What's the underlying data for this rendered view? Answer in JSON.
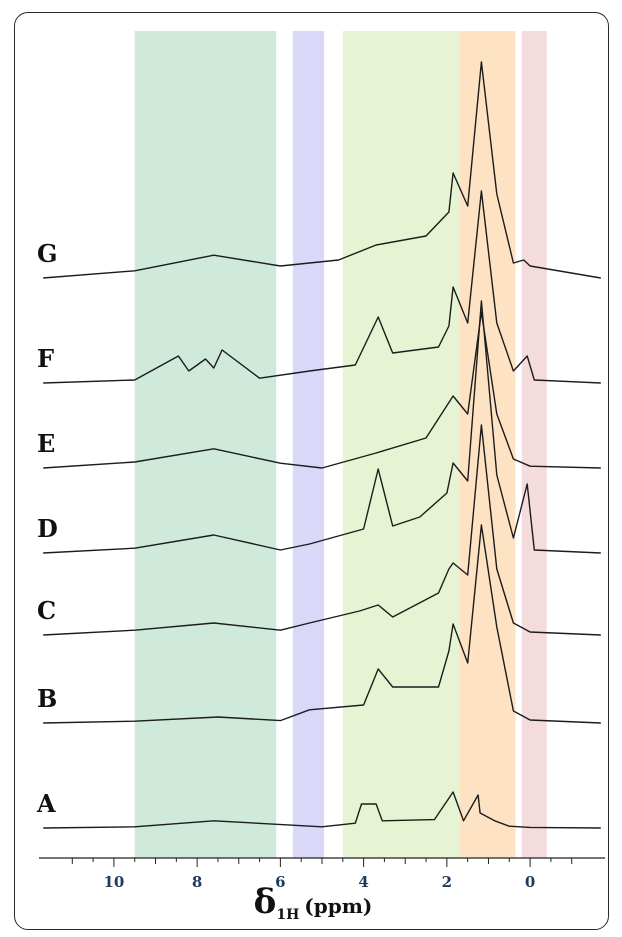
{
  "chart_data": {
    "type": "line",
    "title": "",
    "xlabel": {
      "symbol": "δ",
      "subscript": "1H",
      "unit": "(ppm)"
    },
    "ylabel": "",
    "xlim": [
      11.8,
      -1.8
    ],
    "reversed_x_axis": true,
    "x_ticks": [
      10,
      8,
      6,
      4,
      2,
      0
    ],
    "grid": false,
    "legend": "none",
    "highlight_regions": [
      {
        "from": 9.5,
        "to": 6.1,
        "color": "#cfe9da"
      },
      {
        "from": 5.7,
        "to": 4.95,
        "color": "#d9d8f8"
      },
      {
        "from": 4.5,
        "to": 1.7,
        "color": "#e7f4d3"
      },
      {
        "from": 1.7,
        "to": 0.35,
        "color": "#fde3c3"
      },
      {
        "from": 0.2,
        "to": -0.4,
        "color": "#f4dcdc"
      }
    ],
    "series": [
      {
        "name": "A",
        "points": [
          [
            11.7,
            0
          ],
          [
            9.5,
            2
          ],
          [
            7.6,
            12
          ],
          [
            5.0,
            2
          ],
          [
            4.2,
            8
          ],
          [
            4.05,
            40
          ],
          [
            3.7,
            40
          ],
          [
            3.55,
            12
          ],
          [
            2.3,
            14
          ],
          [
            1.85,
            60
          ],
          [
            1.6,
            12
          ],
          [
            1.25,
            55
          ],
          [
            1.2,
            25
          ],
          [
            0.85,
            12
          ],
          [
            0.5,
            3
          ],
          [
            0,
            1
          ],
          [
            -1.7,
            0
          ]
        ]
      },
      {
        "name": "B",
        "points": [
          [
            11.7,
            0
          ],
          [
            9.5,
            3
          ],
          [
            7.5,
            10
          ],
          [
            6.0,
            4
          ],
          [
            5.3,
            22
          ],
          [
            4.0,
            30
          ],
          [
            3.65,
            90
          ],
          [
            3.3,
            60
          ],
          [
            2.2,
            60
          ],
          [
            1.95,
            120
          ],
          [
            1.85,
            165
          ],
          [
            1.5,
            100
          ],
          [
            1.17,
            330
          ],
          [
            0.8,
            160
          ],
          [
            0.4,
            20
          ],
          [
            0,
            5
          ],
          [
            -1.7,
            0
          ]
        ]
      },
      {
        "name": "C",
        "points": [
          [
            11.7,
            0
          ],
          [
            9.5,
            8
          ],
          [
            7.6,
            20
          ],
          [
            6.0,
            8
          ],
          [
            5.3,
            20
          ],
          [
            4.1,
            40
          ],
          [
            3.65,
            50
          ],
          [
            3.3,
            30
          ],
          [
            2.2,
            70
          ],
          [
            1.95,
            110
          ],
          [
            1.85,
            120
          ],
          [
            1.5,
            100
          ],
          [
            1.17,
            350
          ],
          [
            0.8,
            110
          ],
          [
            0.4,
            20
          ],
          [
            0,
            5
          ],
          [
            -1.7,
            0
          ]
        ]
      },
      {
        "name": "D",
        "points": [
          [
            11.7,
            0
          ],
          [
            9.5,
            8
          ],
          [
            7.6,
            30
          ],
          [
            6.0,
            5
          ],
          [
            5.3,
            15
          ],
          [
            4.0,
            40
          ],
          [
            3.65,
            140
          ],
          [
            3.3,
            45
          ],
          [
            2.65,
            60
          ],
          [
            2.0,
            100
          ],
          [
            1.85,
            150
          ],
          [
            1.5,
            120
          ],
          [
            1.17,
            420
          ],
          [
            0.8,
            130
          ],
          [
            0.4,
            25
          ],
          [
            0.07,
            115
          ],
          [
            -0.1,
            5
          ],
          [
            -1.7,
            0
          ]
        ]
      },
      {
        "name": "E",
        "points": [
          [
            11.7,
            0
          ],
          [
            9.5,
            10
          ],
          [
            7.6,
            32
          ],
          [
            6.0,
            8
          ],
          [
            5.0,
            0
          ],
          [
            3.7,
            25
          ],
          [
            2.5,
            50
          ],
          [
            1.85,
            120
          ],
          [
            1.5,
            90
          ],
          [
            1.17,
            260
          ],
          [
            0.8,
            90
          ],
          [
            0.4,
            15
          ],
          [
            0,
            3
          ],
          [
            -1.7,
            0
          ]
        ]
      },
      {
        "name": "F",
        "points": [
          [
            11.7,
            0
          ],
          [
            9.5,
            5
          ],
          [
            8.45,
            45
          ],
          [
            8.2,
            20
          ],
          [
            7.8,
            40
          ],
          [
            7.6,
            25
          ],
          [
            7.4,
            55
          ],
          [
            6.5,
            8
          ],
          [
            5.3,
            20
          ],
          [
            4.2,
            30
          ],
          [
            3.65,
            110
          ],
          [
            3.3,
            50
          ],
          [
            2.2,
            60
          ],
          [
            1.95,
            95
          ],
          [
            1.85,
            160
          ],
          [
            1.5,
            100
          ],
          [
            1.17,
            320
          ],
          [
            0.8,
            100
          ],
          [
            0.4,
            20
          ],
          [
            0.07,
            45
          ],
          [
            -0.1,
            5
          ],
          [
            -1.7,
            0
          ]
        ]
      },
      {
        "name": "G",
        "points": [
          [
            11.7,
            0
          ],
          [
            9.5,
            12
          ],
          [
            7.6,
            38
          ],
          [
            6.0,
            20
          ],
          [
            4.6,
            30
          ],
          [
            3.7,
            55
          ],
          [
            2.5,
            70
          ],
          [
            1.95,
            110
          ],
          [
            1.85,
            175
          ],
          [
            1.5,
            120
          ],
          [
            1.17,
            360
          ],
          [
            0.8,
            140
          ],
          [
            0.4,
            25
          ],
          [
            0.15,
            30
          ],
          [
            0,
            20
          ],
          [
            -1.7,
            0
          ]
        ]
      }
    ]
  }
}
